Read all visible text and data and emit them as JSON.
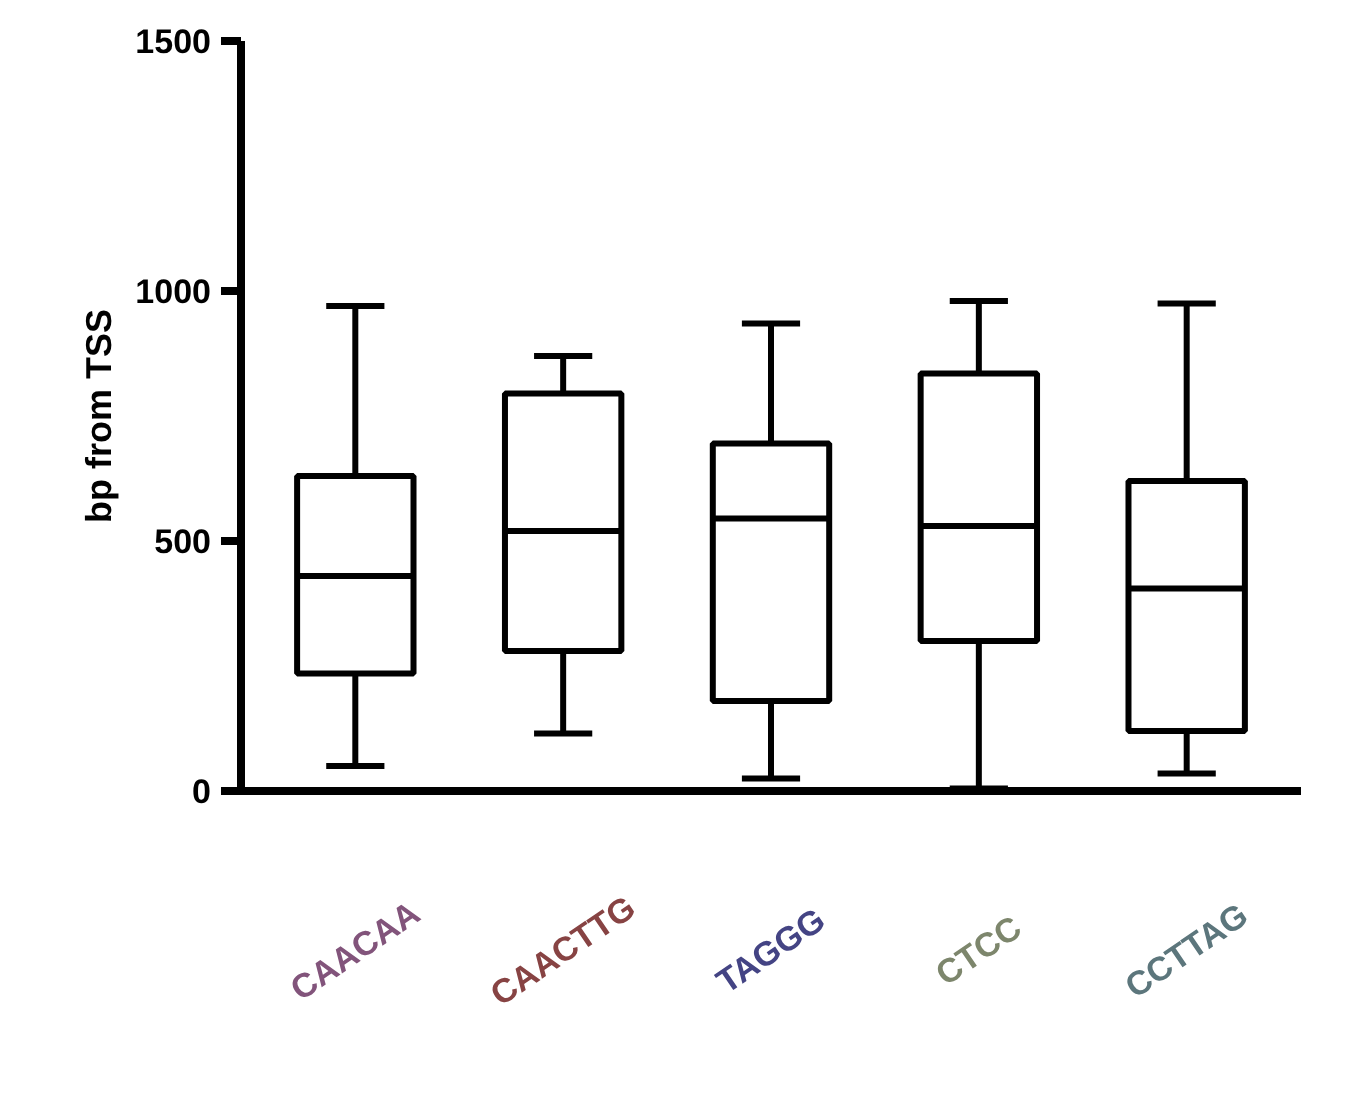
{
  "chart_data": {
    "type": "box",
    "ylabel": "bp from TSS",
    "categories": [
      "CAACAA",
      "CAACTTG",
      "TAGGG",
      "CTCC",
      "CCTTAG"
    ],
    "boxes": [
      {
        "low": 50,
        "q1": 235,
        "median": 430,
        "q3": 630,
        "high": 970
      },
      {
        "low": 115,
        "q1": 280,
        "median": 520,
        "q3": 795,
        "high": 870
      },
      {
        "low": 25,
        "q1": 180,
        "median": 545,
        "q3": 695,
        "high": 935
      },
      {
        "low": 5,
        "q1": 300,
        "median": 530,
        "q3": 835,
        "high": 980
      },
      {
        "low": 35,
        "q1": 120,
        "median": 405,
        "q3": 620,
        "high": 975
      }
    ],
    "ylim": [
      0,
      1500
    ],
    "yticks": [
      0,
      500,
      1000,
      1500
    ],
    "grid": false
  }
}
